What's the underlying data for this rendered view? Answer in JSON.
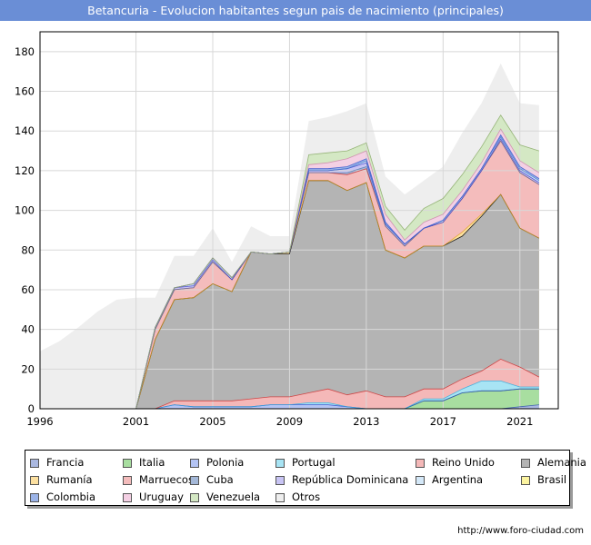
{
  "header": {
    "title": "Betancuria - Evolucion habitantes segun pais de nacimiento (principales)"
  },
  "footer": {
    "url": "http://www.foro-ciudad.com"
  },
  "chart_data": {
    "type": "area",
    "stacked": true,
    "x": [
      1996,
      1997,
      1998,
      1999,
      2000,
      2001,
      2002,
      2003,
      2004,
      2005,
      2006,
      2007,
      2008,
      2009,
      2010,
      2011,
      2012,
      2013,
      2014,
      2015,
      2016,
      2017,
      2018,
      2019,
      2020,
      2021,
      2022
    ],
    "xticks": [
      1996,
      2001,
      2005,
      2009,
      2013,
      2017,
      2021
    ],
    "yticks": [
      0,
      20,
      40,
      60,
      80,
      100,
      120,
      140,
      160,
      180
    ],
    "xlim": [
      1996,
      2023
    ],
    "ylim": [
      0,
      190
    ],
    "grid": true,
    "legend_position": "bottom",
    "series": [
      {
        "name": "Francia",
        "color": "#aab8e0",
        "values": [
          0,
          0,
          0,
          0,
          0,
          0,
          0,
          0,
          0,
          0,
          0,
          0,
          0,
          0,
          0,
          0,
          0,
          0,
          0,
          0,
          0,
          0,
          0,
          0,
          0,
          1,
          2
        ]
      },
      {
        "name": "Italia",
        "color": "#a8dea0",
        "values": [
          0,
          0,
          0,
          0,
          0,
          0,
          0,
          0,
          0,
          0,
          0,
          0,
          0,
          0,
          0,
          0,
          0,
          0,
          0,
          0,
          4,
          4,
          8,
          9,
          9,
          9,
          8
        ]
      },
      {
        "name": "Polonia",
        "color": "#b4c4f4",
        "values": [
          0,
          0,
          0,
          0,
          0,
          0,
          0,
          2,
          1,
          1,
          1,
          1,
          2,
          2,
          2,
          2,
          1,
          0,
          0,
          0,
          0,
          0,
          0,
          0,
          0,
          0,
          0
        ]
      },
      {
        "name": "Portugal",
        "color": "#a8e4f4",
        "values": [
          0,
          0,
          0,
          0,
          0,
          0,
          0,
          0,
          0,
          0,
          0,
          0,
          0,
          0,
          1,
          1,
          0,
          0,
          0,
          0,
          1,
          1,
          2,
          5,
          5,
          1,
          1
        ]
      },
      {
        "name": "Reino Unido",
        "color": "#f4b8b8",
        "values": [
          0,
          0,
          0,
          0,
          0,
          0,
          0,
          2,
          3,
          3,
          3,
          4,
          4,
          4,
          5,
          7,
          6,
          9,
          6,
          6,
          5,
          5,
          5,
          5,
          11,
          10,
          5
        ]
      },
      {
        "name": "Alemania",
        "color": "#b4b4b4",
        "values": [
          0,
          0,
          0,
          0,
          0,
          0,
          35,
          51,
          52,
          59,
          55,
          74,
          72,
          72,
          107,
          105,
          103,
          105,
          74,
          70,
          72,
          72,
          72,
          78,
          83,
          70,
          70
        ]
      },
      {
        "name": "Rumanía",
        "color": "#fce0a0",
        "values": [
          0,
          0,
          0,
          0,
          0,
          0,
          0,
          0,
          0,
          0,
          0,
          0,
          0,
          1,
          0,
          0,
          0,
          0,
          0,
          0,
          0,
          0,
          2,
          1,
          0,
          0,
          0
        ]
      },
      {
        "name": "Marruecos",
        "color": "#f4bcbc",
        "values": [
          0,
          0,
          0,
          0,
          0,
          0,
          5,
          5,
          5,
          11,
          6,
          0,
          0,
          0,
          4,
          4,
          8,
          7,
          12,
          6,
          9,
          12,
          17,
          22,
          27,
          28,
          27
        ]
      },
      {
        "name": "Cuba",
        "color": "#a4b8d8",
        "values": [
          0,
          0,
          0,
          0,
          0,
          0,
          0,
          0,
          0,
          0,
          0,
          0,
          0,
          0,
          0,
          0,
          1,
          1,
          0,
          0,
          0,
          0,
          0,
          0,
          0,
          0,
          0
        ]
      },
      {
        "name": "República Dominicana",
        "color": "#c8c4f4",
        "values": [
          0,
          0,
          0,
          0,
          0,
          0,
          1,
          1,
          1,
          1,
          0,
          0,
          0,
          0,
          1,
          1,
          2,
          2,
          1,
          1,
          0,
          0,
          0,
          0,
          1,
          1,
          1
        ]
      },
      {
        "name": "Argentina",
        "color": "#d4e8f8",
        "values": [
          0,
          0,
          0,
          0,
          0,
          0,
          0,
          0,
          1,
          1,
          1,
          0,
          0,
          0,
          0,
          0,
          0,
          1,
          0,
          0,
          0,
          1,
          1,
          1,
          1,
          1,
          1
        ]
      },
      {
        "name": "Brasil",
        "color": "#fcf4a0",
        "values": [
          0,
          0,
          0,
          0,
          0,
          0,
          0,
          0,
          0,
          0,
          0,
          0,
          0,
          0,
          0,
          0,
          0,
          0,
          0,
          0,
          0,
          0,
          0,
          0,
          0,
          0,
          0
        ]
      },
      {
        "name": "Colombia",
        "color": "#9cb4e8",
        "values": [
          0,
          0,
          0,
          0,
          0,
          0,
          0,
          0,
          0,
          0,
          0,
          0,
          0,
          0,
          1,
          1,
          1,
          1,
          1,
          0,
          0,
          0,
          0,
          0,
          1,
          1,
          1
        ]
      },
      {
        "name": "Uruguay",
        "color": "#f4d0e4",
        "values": [
          0,
          0,
          0,
          0,
          0,
          0,
          0,
          0,
          0,
          0,
          0,
          0,
          0,
          0,
          2,
          3,
          4,
          4,
          4,
          2,
          3,
          3,
          3,
          3,
          3,
          3,
          3
        ]
      },
      {
        "name": "Venezuela",
        "color": "#d4e8c4",
        "values": [
          0,
          0,
          0,
          0,
          0,
          0,
          0,
          0,
          0,
          0,
          0,
          0,
          0,
          0,
          5,
          5,
          4,
          4,
          4,
          5,
          7,
          8,
          8,
          8,
          7,
          8,
          11
        ]
      },
      {
        "name": "Otros",
        "color": "#eeeeee",
        "values": [
          29,
          34,
          41,
          49,
          55,
          56,
          15,
          16,
          14,
          15,
          8,
          13,
          9,
          8,
          17,
          18,
          20,
          20,
          15,
          18,
          14,
          16,
          21,
          22,
          26,
          21,
          23
        ]
      }
    ]
  }
}
